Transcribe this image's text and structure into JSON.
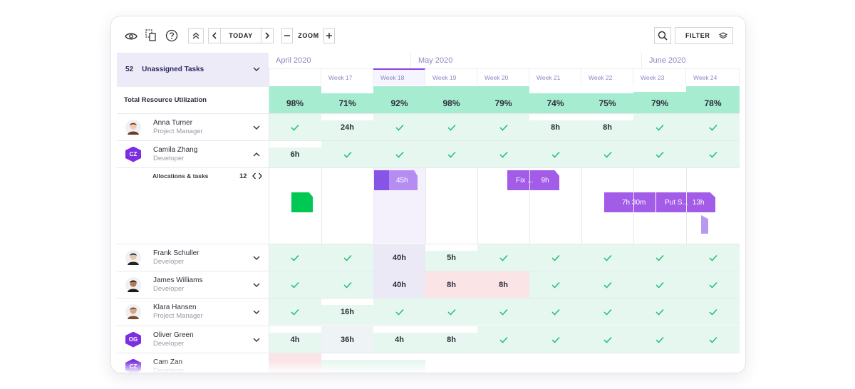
{
  "toolbar": {
    "today_label": "TODAY",
    "zoom_label": "ZOOM",
    "filter_label": "FILTER",
    "icons": [
      "eye-icon",
      "copy-doc-icon",
      "help-icon",
      "collapse-up-icon",
      "chevron-left-icon",
      "chevron-right-icon",
      "minus-icon",
      "plus-icon",
      "search-icon",
      "layers-icon"
    ]
  },
  "unassigned": {
    "count": "52",
    "label": "Unassigned Tasks"
  },
  "months": [
    {
      "label": "April 2020"
    },
    {
      "label": "May 2020"
    },
    {
      "label": "June 2020"
    }
  ],
  "weeks": [
    {
      "label": ""
    },
    {
      "label": "Week 17"
    },
    {
      "label": "Week 18"
    },
    {
      "label": "Week 19"
    },
    {
      "label": "Week 20"
    },
    {
      "label": "Week 21"
    },
    {
      "label": "Week 22"
    },
    {
      "label": "Week 23"
    },
    {
      "label": "Week 24"
    }
  ],
  "utilization": {
    "label": "Total Resource Utilization",
    "values": [
      "98%",
      "71%",
      "92%",
      "98%",
      "79%",
      "74%",
      "75%",
      "79%",
      "78%"
    ]
  },
  "people": [
    {
      "name": "Anna Turner",
      "role": "Project Manager",
      "avatar": "photo",
      "expanded": false,
      "cells": [
        "check",
        "24h",
        "check",
        "check",
        "check",
        "8h",
        "8h",
        "check",
        "check"
      ]
    },
    {
      "name": "Camila Zhang",
      "role": "Developer",
      "avatar": "initials",
      "initials": "CZ",
      "expanded": true,
      "cells": [
        "6h",
        "check",
        "check",
        "check",
        "check",
        "check",
        "check",
        "check",
        "check"
      ]
    },
    {
      "name": "Frank Schuller",
      "role": "Developer",
      "avatar": "photo",
      "expanded": false,
      "cells": [
        "check",
        "check",
        "40h",
        "5h",
        "check",
        "check",
        "check",
        "check",
        "check"
      ]
    },
    {
      "name": "James Williams",
      "role": "Developer",
      "avatar": "photo",
      "expanded": false,
      "cells": [
        "check",
        "check",
        "40h",
        "8h",
        "8h",
        "check",
        "check",
        "check",
        "check"
      ]
    },
    {
      "name": "Klara Hansen",
      "role": "Project Manager",
      "avatar": "photo",
      "expanded": false,
      "cells": [
        "check",
        "16h",
        "check",
        "check",
        "check",
        "check",
        "check",
        "check",
        "check"
      ]
    },
    {
      "name": "Oliver Green",
      "role": "Developer",
      "avatar": "initials",
      "initials": "OG",
      "expanded": false,
      "cells": [
        "4h",
        "36h",
        "4h",
        "8h",
        "check",
        "check",
        "check",
        "check",
        "check"
      ]
    },
    {
      "name": "Cam Zan",
      "role": "Developer",
      "avatar": "initials",
      "initials": "CZ",
      "expanded": false,
      "cells": [
        "",
        "",
        "",
        "",
        "",
        "",
        "",
        "",
        ""
      ]
    }
  ],
  "allocations": {
    "label": "Allocations & tasks",
    "count": "12",
    "bars": [
      {
        "label": "45h"
      },
      {
        "label": "Fix ...",
        "hours": "9h"
      },
      {
        "label": "7h 30m"
      },
      {
        "label": "Put S...",
        "hours": "13h"
      }
    ]
  },
  "colors": {
    "accent": "#8a3fe0",
    "bar_purple": "#a35ce8",
    "bar_green": "#00c853",
    "util_green": "#a6ecd0",
    "cell_green": "#e6f7ef",
    "cell_red": "#fbe4e6",
    "check": "#1fbf7a",
    "highlight_column": "#f4f1fd"
  }
}
